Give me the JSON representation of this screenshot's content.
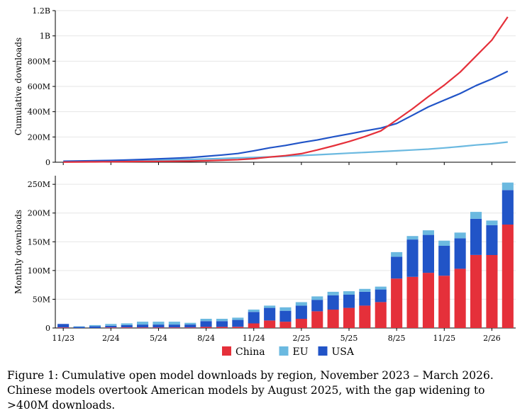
{
  "chart_data": [
    {
      "type": "line",
      "ylabel": "Cumulative downloads",
      "ylim": [
        0,
        1200000000
      ],
      "yticks": [
        {
          "value": 0,
          "label": "0"
        },
        {
          "value": 200000000,
          "label": "200M"
        },
        {
          "value": 400000000,
          "label": "400M"
        },
        {
          "value": 600000000,
          "label": "600M"
        },
        {
          "value": 800000000,
          "label": "800M"
        },
        {
          "value": 1000000000,
          "label": "1B"
        },
        {
          "value": 1200000000,
          "label": "1.2B"
        }
      ],
      "grid": true,
      "x": [
        "2023-11",
        "2023-12",
        "2024-01",
        "2024-02",
        "2024-03",
        "2024-04",
        "2024-05",
        "2024-06",
        "2024-07",
        "2024-08",
        "2024-09",
        "2024-10",
        "2024-11",
        "2024-12",
        "2025-01",
        "2025-02",
        "2025-03",
        "2025-04",
        "2025-05",
        "2025-06",
        "2025-07",
        "2025-08",
        "2025-09",
        "2025-10",
        "2025-11",
        "2025-12",
        "2026-01",
        "2026-02",
        "2026-03"
      ],
      "series": [
        {
          "name": "China",
          "color": "#e5303a",
          "values": [
            1000000,
            2000000,
            3000000,
            4000000,
            5000000,
            6000000,
            7000000,
            8000000,
            9000000,
            12000000,
            16000000,
            20000000,
            28000000,
            41000000,
            52000000,
            68000000,
            97000000,
            129000000,
            164000000,
            203000000,
            248000000,
            334000000,
            423000000,
            519000000,
            610000000,
            713000000,
            840000000,
            967000000,
            1150000000
          ]
        },
        {
          "name": "EU",
          "color": "#6bb9e0",
          "values": [
            4000000,
            5000000,
            6000000,
            8000000,
            11000000,
            14000000,
            17000000,
            20000000,
            22000000,
            26000000,
            30000000,
            34000000,
            38000000,
            42000000,
            47000000,
            53000000,
            59000000,
            65000000,
            72000000,
            78000000,
            84000000,
            90000000,
            97000000,
            104000000,
            113000000,
            124000000,
            136000000,
            146000000,
            160000000
          ]
        },
        {
          "name": "USA",
          "color": "#2154c7",
          "values": [
            8000000,
            10000000,
            12000000,
            14000000,
            18000000,
            22000000,
            27000000,
            32000000,
            37000000,
            47000000,
            57000000,
            69000000,
            90000000,
            114000000,
            133000000,
            156000000,
            176000000,
            201000000,
            224000000,
            248000000,
            270000000,
            307000000,
            372000000,
            438000000,
            491000000,
            544000000,
            607000000,
            659000000,
            720000000
          ]
        }
      ]
    },
    {
      "type": "bar",
      "stacked": true,
      "ylabel": "Monthly downloads",
      "ylim": [
        0,
        265000000
      ],
      "yticks": [
        {
          "value": 0,
          "label": "0"
        },
        {
          "value": 50000000,
          "label": "50M"
        },
        {
          "value": 100000000,
          "label": "100M"
        },
        {
          "value": 150000000,
          "label": "150M"
        },
        {
          "value": 200000000,
          "label": "200M"
        },
        {
          "value": 250000000,
          "label": "250M"
        }
      ],
      "grid": true,
      "categories": [
        "2023-11",
        "2023-12",
        "2024-01",
        "2024-02",
        "2024-03",
        "2024-04",
        "2024-05",
        "2024-06",
        "2024-07",
        "2024-08",
        "2024-09",
        "2024-10",
        "2024-11",
        "2024-12",
        "2025-01",
        "2025-02",
        "2025-03",
        "2025-04",
        "2025-05",
        "2025-06",
        "2025-07",
        "2025-08",
        "2025-09",
        "2025-10",
        "2025-11",
        "2025-12",
        "2026-01",
        "2026-02",
        "2026-03"
      ],
      "xticks": [
        {
          "index": 0,
          "label": "11/23"
        },
        {
          "index": 3,
          "label": "2/24"
        },
        {
          "index": 6,
          "label": "5/24"
        },
        {
          "index": 9,
          "label": "8/24"
        },
        {
          "index": 12,
          "label": "11/24"
        },
        {
          "index": 15,
          "label": "2/25"
        },
        {
          "index": 18,
          "label": "5/25"
        },
        {
          "index": 21,
          "label": "8/25"
        },
        {
          "index": 24,
          "label": "11/25"
        },
        {
          "index": 27,
          "label": "2/26"
        }
      ],
      "series": [
        {
          "name": "China",
          "color": "#e5303a",
          "values": [
            1000000,
            0,
            0,
            1000000,
            1000000,
            1000000,
            1000000,
            1000000,
            1000000,
            2000000,
            2000000,
            2000000,
            8000000,
            13000000,
            11000000,
            16000000,
            29000000,
            32000000,
            35000000,
            39000000,
            45000000,
            86000000,
            89000000,
            96000000,
            91000000,
            103000000,
            127000000,
            127000000,
            180000000
          ]
        },
        {
          "name": "USA",
          "color": "#2154c7",
          "values": [
            6000000,
            2000000,
            3000000,
            3000000,
            4000000,
            5000000,
            5000000,
            5000000,
            5000000,
            10000000,
            10000000,
            12000000,
            20000000,
            22000000,
            19000000,
            23000000,
            20000000,
            25000000,
            23000000,
            24000000,
            22000000,
            38000000,
            65000000,
            66000000,
            52000000,
            53000000,
            63000000,
            52000000,
            60000000
          ]
        },
        {
          "name": "EU",
          "color": "#6bb9e0",
          "values": [
            0,
            1000000,
            2000000,
            3000000,
            3000000,
            5000000,
            5000000,
            5000000,
            3000000,
            4000000,
            4000000,
            4000000,
            4000000,
            4000000,
            6000000,
            6000000,
            6000000,
            6000000,
            6000000,
            5000000,
            5000000,
            8000000,
            6000000,
            8000000,
            9000000,
            10000000,
            12000000,
            8000000,
            13000000
          ]
        }
      ]
    }
  ],
  "legend": {
    "placement": "bottom-center",
    "items": [
      {
        "label": "China",
        "color": "#e5303a"
      },
      {
        "label": "EU",
        "color": "#6bb9e0"
      },
      {
        "label": "USA",
        "color": "#2154c7"
      }
    ]
  },
  "caption": "Figure 1: Cumulative open model downloads by region, November 2023 – March 2026. Chinese models overtook American models by August 2025, with the gap widening to >400M downloads."
}
